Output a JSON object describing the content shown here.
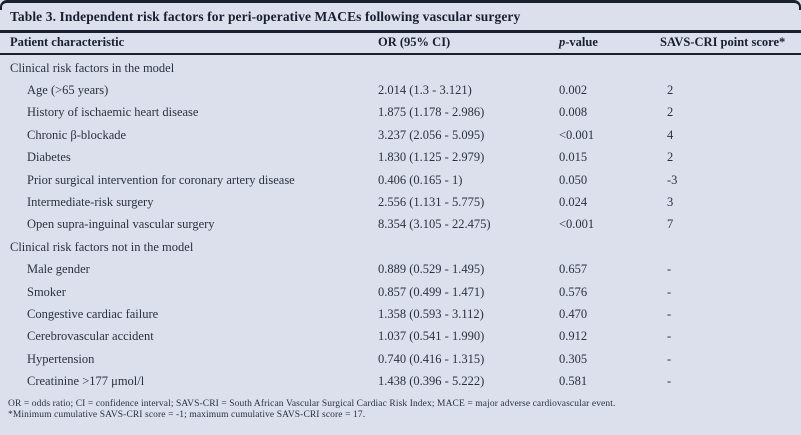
{
  "colors": {
    "background": "#dbe0ec",
    "line": "#1b2030",
    "text": "#2b3142",
    "heading_text": "#1a1f30"
  },
  "table": {
    "title": "Table 3. Independent risk factors for peri-operative MACEs following vascular surgery",
    "columns": [
      {
        "label": "Patient characteristic"
      },
      {
        "label": "OR (95% CI)"
      },
      {
        "label_em": "p",
        "label": "-value"
      },
      {
        "label": "SAVS-CRI point score*"
      }
    ],
    "sections": [
      {
        "label": "Clinical risk factors in the model",
        "rows": [
          {
            "characteristic": "Age (>65 years)",
            "or_ci": "2.014 (1.3 - 3.121)",
            "p": "0.002",
            "score": "2"
          },
          {
            "characteristic": "History of ischaemic heart disease",
            "or_ci": "1.875 (1.178 - 2.986)",
            "p": "0.008",
            "score": "2"
          },
          {
            "characteristic": "Chronic β-blockade",
            "or_ci": "3.237 (2.056 - 5.095)",
            "p": "<0.001",
            "score": "4"
          },
          {
            "characteristic": "Diabetes",
            "or_ci": "1.830 (1.125 - 2.979)",
            "p": "0.015",
            "score": "2"
          },
          {
            "characteristic": "Prior surgical intervention for coronary artery disease",
            "or_ci": "0.406 (0.165 - 1)",
            "p": "0.050",
            "score": "-3"
          },
          {
            "characteristic": "Intermediate-risk surgery",
            "or_ci": "2.556 (1.131 - 5.775)",
            "p": "0.024",
            "score": "3"
          },
          {
            "characteristic": "Open supra-inguinal vascular surgery",
            "or_ci": "8.354 (3.105 - 22.475)",
            "p": "<0.001",
            "score": "7"
          }
        ]
      },
      {
        "label": "Clinical risk factors not in the model",
        "rows": [
          {
            "characteristic": "Male gender",
            "or_ci": "0.889 (0.529 - 1.495)",
            "p": "0.657",
            "score": "-"
          },
          {
            "characteristic": "Smoker",
            "or_ci": "0.857 (0.499 - 1.471)",
            "p": "0.576",
            "score": "-"
          },
          {
            "characteristic": "Congestive cardiac failure",
            "or_ci": "1.358 (0.593 - 3.112)",
            "p": "0.470",
            "score": "-"
          },
          {
            "characteristic": "Cerebrovascular accident",
            "or_ci": "1.037 (0.541 - 1.990)",
            "p": "0.912",
            "score": "-"
          },
          {
            "characteristic": "Hypertension",
            "or_ci": "0.740 (0.416 - 1.315)",
            "p": "0.305",
            "score": "-"
          },
          {
            "characteristic": "Creatinine >177 μmol/l",
            "or_ci": "1.438 (0.396 - 5.222)",
            "p": "0.581",
            "score": "-"
          }
        ]
      }
    ],
    "footnotes": [
      "OR = odds ratio; CI = confidence interval; SAVS-CRI = South African Vascular Surgical Cardiac Risk Index; MACE = major adverse cardiovascular event.",
      "*Minimum cumulative SAVS-CRI score = -1; maximum cumulative SAVS-CRI score = 17."
    ]
  }
}
